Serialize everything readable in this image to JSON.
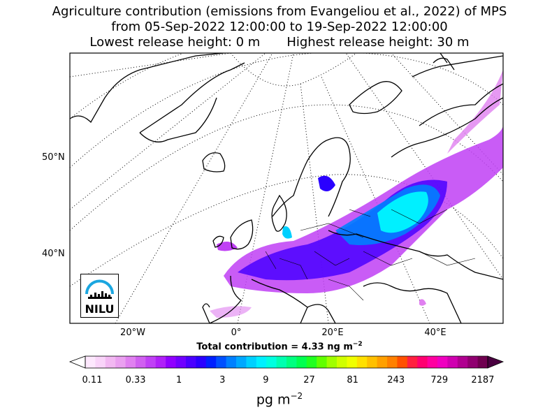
{
  "title": {
    "line1": "Agriculture contribution (emissions from Evangeliou et al., 2022) of MPS",
    "line2": "from 05-Sep-2022 12:00:00 to 19-Sep-2022 12:00:00",
    "line3_left": "Lowest release height: 0 m",
    "line3_right": "Highest release height: 30 m"
  },
  "map": {
    "lat_labels": [
      "50°N",
      "40°N"
    ],
    "lon_labels": [
      "20°W",
      "0°",
      "20°E",
      "40°E"
    ],
    "colors": {
      "land_outline": "#000000",
      "background": "#ffffff"
    }
  },
  "total": {
    "text": "Total contribution = 4.33 ng m",
    "exponent": "−2"
  },
  "colorbar": {
    "ticks": [
      "0.11",
      "0.33",
      "1",
      "3",
      "9",
      "27",
      "81",
      "243",
      "729",
      "2187"
    ],
    "unit": "pg m",
    "unit_exponent": "−2",
    "colors": [
      "#fde8fd",
      "#f9d4f9",
      "#f2b8f2",
      "#eaa0f0",
      "#e080f0",
      "#d060f0",
      "#c040f5",
      "#b020f8",
      "#9000ff",
      "#7000ff",
      "#4a00ff",
      "#2a00ff",
      "#0020ff",
      "#0050ff",
      "#0080ff",
      "#00a8ff",
      "#00d0ff",
      "#00f0ff",
      "#00ffe0",
      "#00ffb0",
      "#00ff80",
      "#00ff50",
      "#20ff20",
      "#60ff00",
      "#a0ff00",
      "#d0ff00",
      "#f0ff00",
      "#ffe000",
      "#ffc000",
      "#ffa000",
      "#ff8000",
      "#ff5000",
      "#ff2040",
      "#ff0070",
      "#ff00a0",
      "#f000c0",
      "#d000b0",
      "#b00090",
      "#900070",
      "#700050"
    ]
  },
  "logo": {
    "text": "NILU",
    "color": "#1aa6e0"
  }
}
